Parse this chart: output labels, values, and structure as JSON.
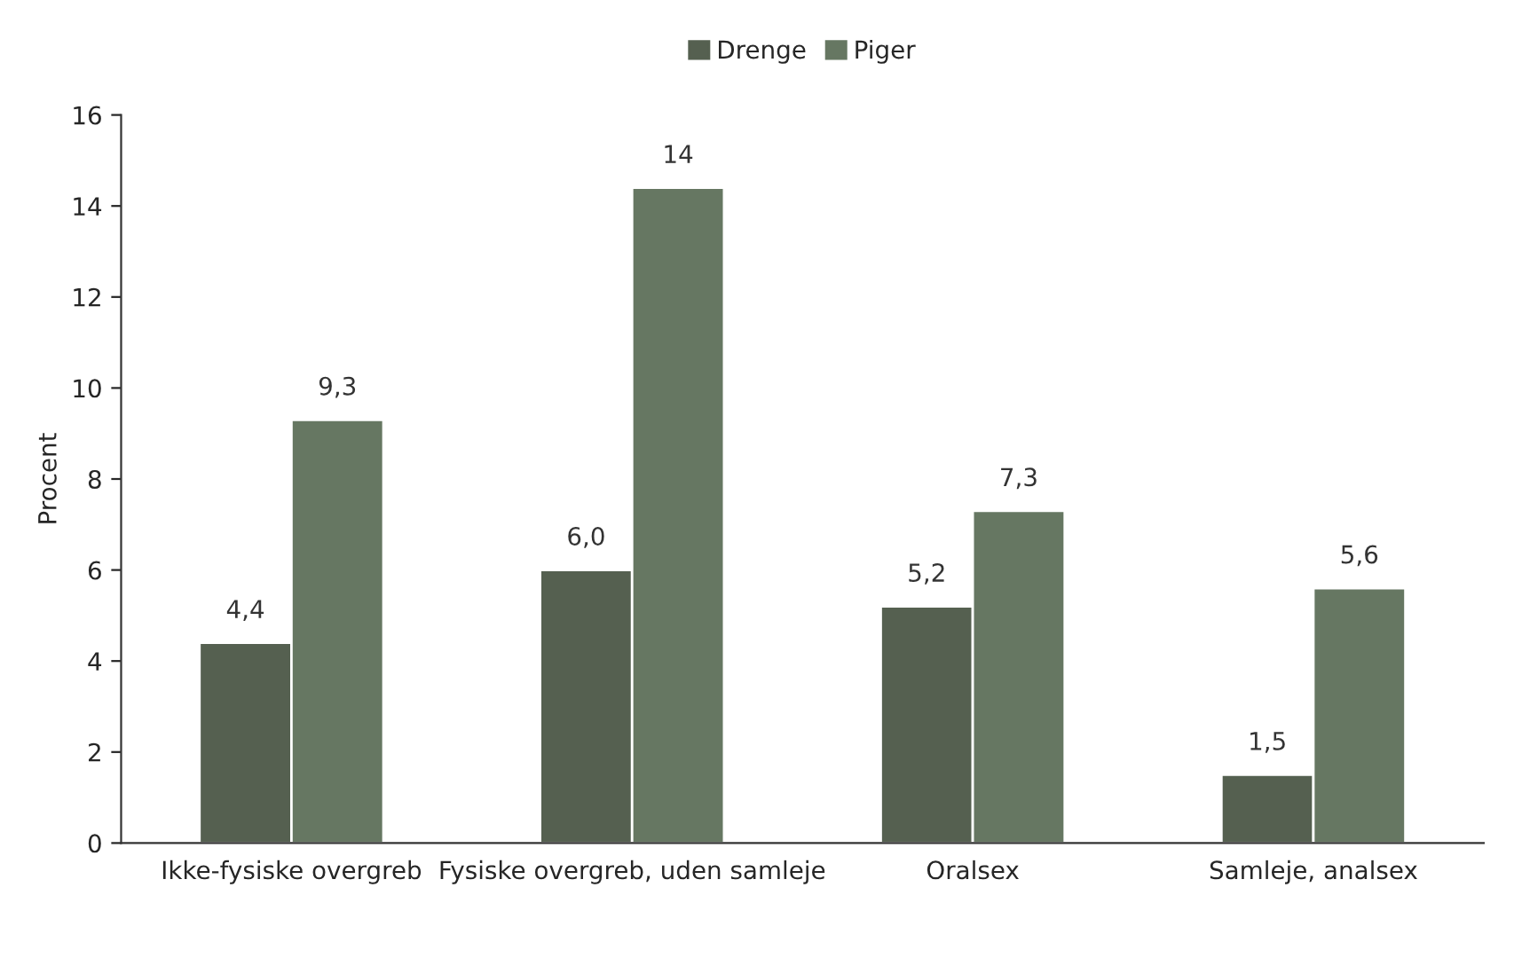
{
  "chart_data": {
    "type": "bar",
    "ylabel": "Procent",
    "categories": [
      "Ikke-fysiske overgreb",
      "Fysiske overgreb, uden samleje",
      "Oralsex",
      "Samleje, analsex"
    ],
    "series": [
      {
        "name": "Drenge",
        "color": "#556050",
        "values": [
          4.4,
          6.0,
          5.2,
          1.5
        ],
        "value_labels": [
          "4,4",
          "6,0",
          "5,2",
          "1,5"
        ]
      },
      {
        "name": "Piger",
        "color": "#667762",
        "values": [
          9.3,
          14.4,
          7.3,
          5.6
        ],
        "value_labels": [
          "9,3",
          "14",
          "7,3",
          "5,6"
        ]
      }
    ],
    "ylim": [
      0,
      16
    ],
    "yticks": [
      0,
      2,
      4,
      6,
      8,
      10,
      12,
      14,
      16
    ],
    "grid": false,
    "legend": "top"
  }
}
